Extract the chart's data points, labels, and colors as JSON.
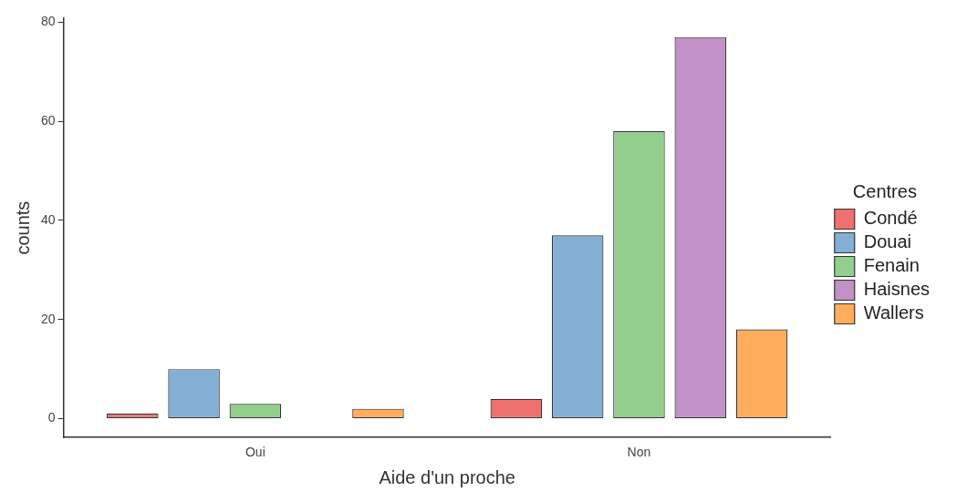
{
  "chart_data": {
    "type": "bar",
    "xlabel": "Aide d'un proche",
    "ylabel": "counts",
    "legend_title": "Centres",
    "categories": [
      "Oui",
      "Non"
    ],
    "series": [
      {
        "name": "Condé",
        "color": "#f07070",
        "values": [
          1,
          4
        ]
      },
      {
        "name": "Douai",
        "color": "#84afd4",
        "values": [
          10,
          37
        ]
      },
      {
        "name": "Fenain",
        "color": "#92cf8d",
        "values": [
          3,
          58
        ]
      },
      {
        "name": "Haisnes",
        "color": "#c090c6",
        "values": [
          0,
          77
        ]
      },
      {
        "name": "Wallers",
        "color": "#ffad5c",
        "values": [
          2,
          18
        ]
      }
    ],
    "ylim": [
      -3.8,
      80.8
    ],
    "yticks": [
      0,
      20,
      40,
      60,
      80
    ],
    "grid": false,
    "legend": "right"
  }
}
